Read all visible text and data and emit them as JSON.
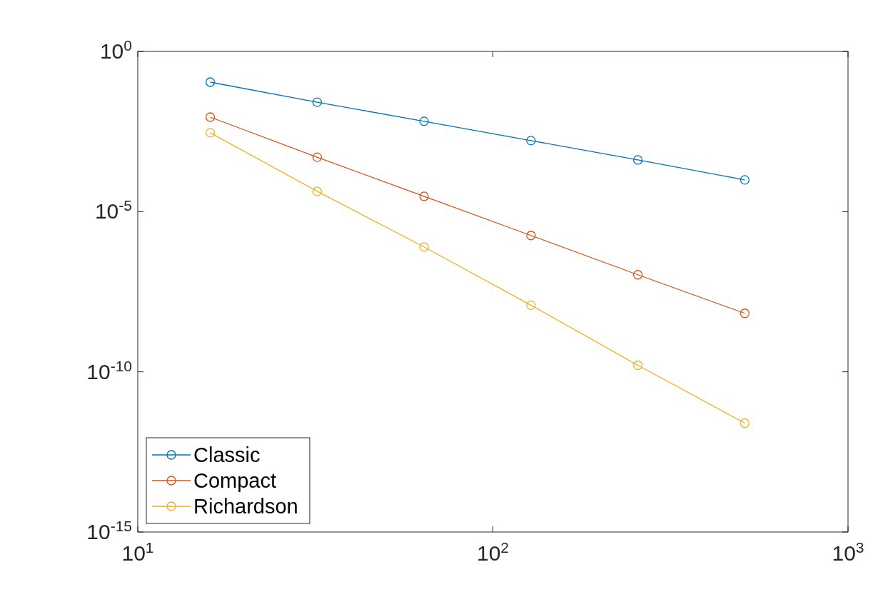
{
  "chart_data": {
    "type": "line",
    "log": "xy",
    "grid": false,
    "legend": "bottom left",
    "marker": "circle",
    "line_style": "solid",
    "xlim": [
      10,
      1000
    ],
    "xticks": [
      {
        "value": 10,
        "label": "10$^{1}$"
      },
      {
        "value": 100,
        "label": "10$^{2}$"
      },
      {
        "value": 1000,
        "label": "10$^{3}$"
      }
    ],
    "ylim": [
      1e-15,
      1
    ],
    "yticks": [
      {
        "value": 1e-15,
        "label": "10$^{-15}$"
      },
      {
        "value": 1e-10,
        "label": "10$^{-10}$"
      },
      {
        "value": 1e-05,
        "label": "10$^{-5}$"
      },
      {
        "value": 1,
        "label": "10$^{0}$"
      }
    ],
    "x": [
      16,
      32,
      64,
      128,
      256,
      512
    ],
    "series": [
      {
        "name": "Classic",
        "color": "#0072bd",
        "values": [
          0.11,
          0.026,
          0.0066,
          0.00165,
          0.00041,
          9.8e-05
        ]
      },
      {
        "name": "Compact",
        "color": "#d95319",
        "values": [
          0.0089,
          0.0005,
          3e-05,
          1.8e-06,
          1.07e-07,
          6.7e-09
        ]
      },
      {
        "name": "Richardson",
        "color": "#edb120",
        "values": [
          0.0029,
          4.3e-05,
          7.9e-07,
          1.2e-08,
          1.6e-10,
          2.5e-12
        ]
      }
    ]
  }
}
